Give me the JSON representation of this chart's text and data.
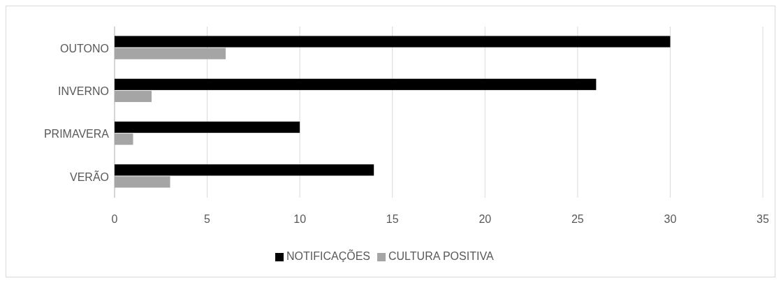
{
  "chart_data": {
    "type": "bar",
    "orientation": "horizontal",
    "categories": [
      "OUTONO",
      "INVERNO",
      "PRIMAVERA",
      "VERÃO"
    ],
    "series": [
      {
        "name": "NOTIFICAÇÕES",
        "color": "#000000",
        "values": [
          30,
          26,
          10,
          14
        ]
      },
      {
        "name": "CULTURA POSITIVA",
        "color": "#a5a5a5",
        "values": [
          6,
          2,
          1,
          3
        ]
      }
    ],
    "xlim": [
      0,
      35
    ],
    "xticks": [
      0,
      5,
      10,
      15,
      20,
      25,
      30,
      35
    ],
    "grid": "x",
    "legend": "bottom"
  }
}
